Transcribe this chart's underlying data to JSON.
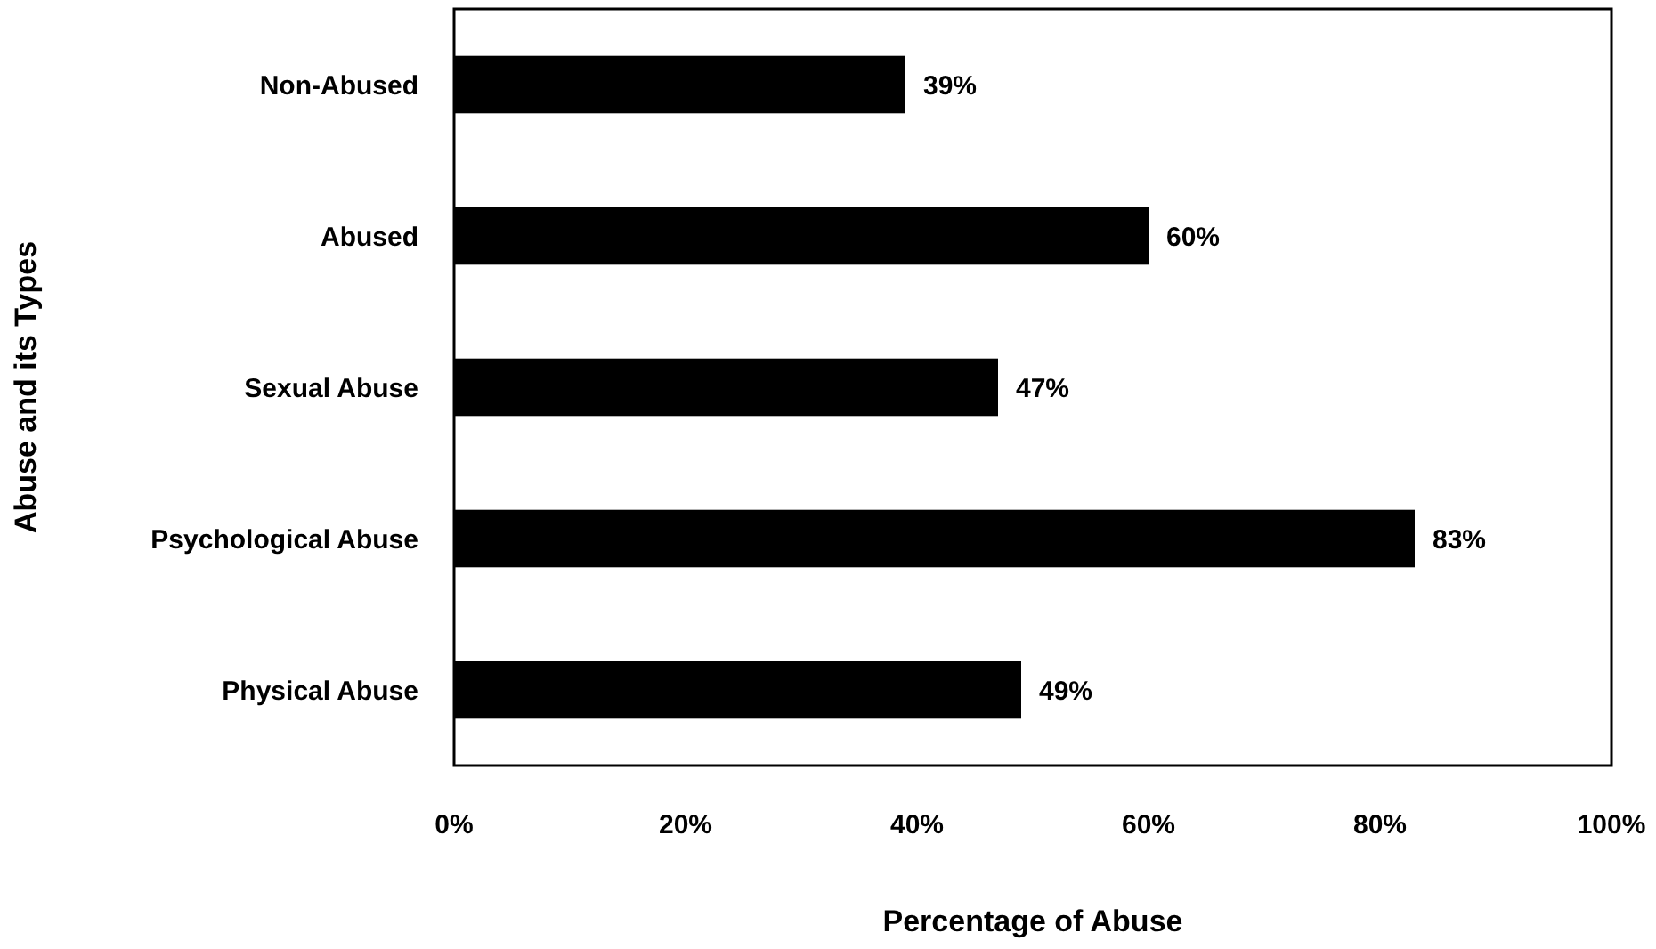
{
  "chart_data": {
    "type": "bar",
    "orientation": "horizontal",
    "xlabel": "Percentage of Abuse",
    "ylabel": "Abuse and its Types",
    "categories": [
      "Non-Abused",
      "Abused",
      "Sexual Abuse",
      "Psychological Abuse",
      "Physical Abuse"
    ],
    "values": [
      39,
      60,
      47,
      83,
      49
    ],
    "value_labels": [
      "39%",
      "60%",
      "47%",
      "83%",
      "49%"
    ],
    "color": "#000000",
    "xlim": [
      0,
      100
    ],
    "xticks": [
      {
        "value": 0,
        "label": "0%"
      },
      {
        "value": 20,
        "label": "20%"
      },
      {
        "value": 40,
        "label": "40%"
      },
      {
        "value": 60,
        "label": "60%"
      },
      {
        "value": 80,
        "label": "80%"
      },
      {
        "value": 100,
        "label": "100%"
      }
    ],
    "grid": false
  }
}
